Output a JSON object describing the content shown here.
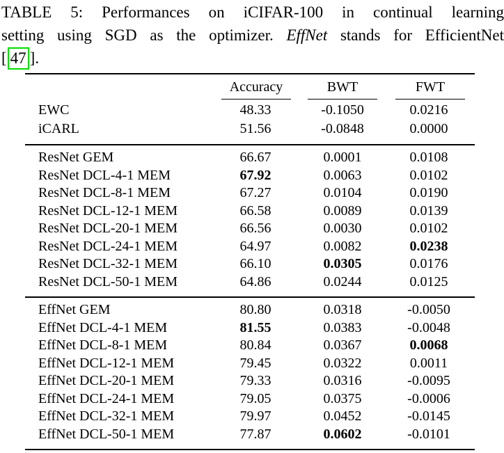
{
  "caption": {
    "line1": "TABLE 5: Performances on iCIFAR-100 in continual learning",
    "line2_pre": "setting using SGD as the optimizer.",
    "line2_italic": "EffNet",
    "line2_post": "stands for EfficientNet",
    "line3_open": "[",
    "line3_citation": "47",
    "line3_close": "].",
    "citation_box_color": "#00dd00"
  },
  "table": {
    "columns": [
      "",
      "Accuracy",
      "BWT",
      "FWT"
    ],
    "groups": [
      {
        "name": "baselines",
        "rows": [
          {
            "label": "EWC",
            "accuracy": "48.33",
            "bwt": "-0.1050",
            "fwt": "0.0216",
            "bold": null
          },
          {
            "label": "iCARL",
            "accuracy": "51.56",
            "bwt": "-0.0848",
            "fwt": "0.0000",
            "bold": null
          }
        ]
      },
      {
        "name": "resnet",
        "rows": [
          {
            "label": "ResNet GEM",
            "accuracy": "66.67",
            "bwt": "0.0001",
            "fwt": "0.0108",
            "bold": null
          },
          {
            "label": "ResNet DCL-4-1 MEM",
            "accuracy": "67.92",
            "bwt": "0.0063",
            "fwt": "0.0102",
            "bold": "accuracy"
          },
          {
            "label": "ResNet DCL-8-1 MEM",
            "accuracy": "67.27",
            "bwt": "0.0104",
            "fwt": "0.0190",
            "bold": null
          },
          {
            "label": "ResNet DCL-12-1 MEM",
            "accuracy": "66.58",
            "bwt": "0.0089",
            "fwt": "0.0139",
            "bold": null
          },
          {
            "label": "ResNet DCL-20-1 MEM",
            "accuracy": "66.56",
            "bwt": "0.0030",
            "fwt": "0.0102",
            "bold": null
          },
          {
            "label": "ResNet DCL-24-1 MEM",
            "accuracy": "64.97",
            "bwt": "0.0082",
            "fwt": "0.0238",
            "bold": "fwt"
          },
          {
            "label": "ResNet DCL-32-1 MEM",
            "accuracy": "66.10",
            "bwt": "0.0305",
            "fwt": "0.0176",
            "bold": "bwt"
          },
          {
            "label": "ResNet DCL-50-1 MEM",
            "accuracy": "64.86",
            "bwt": "0.0244",
            "fwt": "0.0125",
            "bold": null
          }
        ]
      },
      {
        "name": "effnet",
        "rows": [
          {
            "label": "EffNet GEM",
            "accuracy": "80.80",
            "bwt": "0.0318",
            "fwt": "-0.0050",
            "bold": null
          },
          {
            "label": "EffNet DCL-4-1 MEM",
            "accuracy": "81.55",
            "bwt": "0.0383",
            "fwt": "-0.0048",
            "bold": "accuracy"
          },
          {
            "label": "EffNet DCL-8-1 MEM",
            "accuracy": "80.84",
            "bwt": "0.0367",
            "fwt": "0.0068",
            "bold": "fwt"
          },
          {
            "label": "EffNet DCL-12-1 MEM",
            "accuracy": "79.45",
            "bwt": "0.0322",
            "fwt": "0.0011",
            "bold": null
          },
          {
            "label": "EffNet DCL-20-1 MEM",
            "accuracy": "79.33",
            "bwt": "0.0316",
            "fwt": "-0.0095",
            "bold": null
          },
          {
            "label": "EffNet DCL-24-1 MEM",
            "accuracy": "79.05",
            "bwt": "0.0375",
            "fwt": "-0.0006",
            "bold": null
          },
          {
            "label": "EffNet DCL-32-1 MEM",
            "accuracy": "79.97",
            "bwt": "0.0452",
            "fwt": "-0.0145",
            "bold": null
          },
          {
            "label": "EffNet DCL-50-1 MEM",
            "accuracy": "77.87",
            "bwt": "0.0602",
            "fwt": "-0.0101",
            "bold": "bwt"
          }
        ]
      }
    ]
  }
}
